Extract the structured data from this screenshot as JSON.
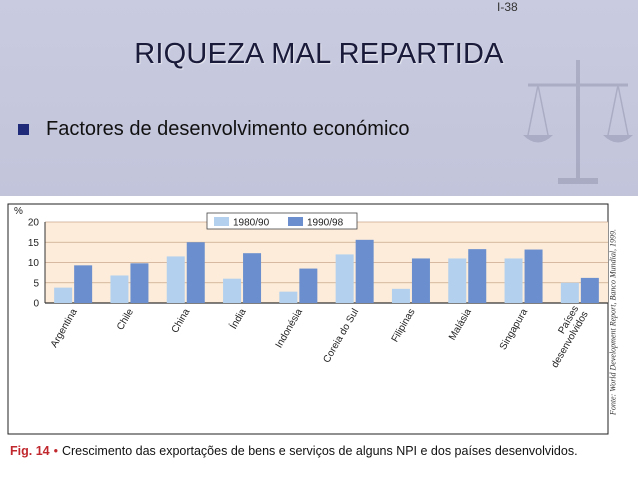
{
  "slide": {
    "number": "I-38",
    "title": "RIQUEZA MAL REPARTIDA",
    "bullet": "Factores de desenvolvimento económico"
  },
  "figure": {
    "caption_label": "Fig. 14",
    "caption_text": "Crescimento das exportações de bens e serviços de alguns NPI e dos países desenvolvidos.",
    "source": "Fonte: World Development Report, Banco Mundial, 1999."
  },
  "colors": {
    "series_1": "#b3d1ee",
    "series_2": "#6b8fce",
    "plot_bg": "#fdecd9",
    "caption_accent": "#c0282d"
  },
  "chart_data": {
    "type": "bar",
    "ylabel": "%",
    "ylim": [
      0,
      20
    ],
    "yticks": [
      0,
      5,
      10,
      15,
      20
    ],
    "grid": true,
    "legend_position": "top-center",
    "categories": [
      "Argentina",
      "Chile",
      "China",
      "Índia",
      "Indonésia",
      "Coreia do Sul",
      "Filipinas",
      "Malásia",
      "Singapura",
      "Países desenvolvidos"
    ],
    "series": [
      {
        "name": "1980/90",
        "values": [
          3.8,
          6.8,
          11.5,
          6.0,
          2.8,
          12.0,
          3.5,
          11.0,
          11.0,
          5.0
        ]
      },
      {
        "name": "1990/98",
        "values": [
          9.3,
          9.8,
          15.0,
          12.3,
          8.5,
          15.6,
          11.0,
          13.3,
          13.2,
          6.2
        ]
      }
    ]
  }
}
